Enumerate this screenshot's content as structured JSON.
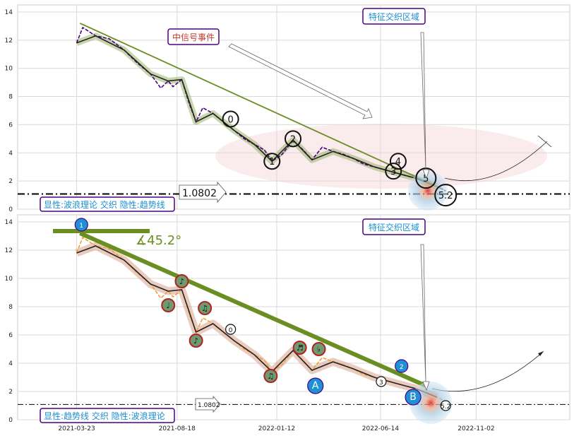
{
  "chart_data": [
    {
      "type": "line",
      "panel": "top",
      "title": "",
      "xlabel": "",
      "ylabel": "",
      "ylim": [
        0,
        14.5
      ],
      "yticks": [
        0,
        2,
        4,
        6,
        8,
        10,
        12,
        14
      ],
      "grid": true,
      "price_series": {
        "x": [
          "2021-03-23",
          "2021-04-01",
          "2021-04-20",
          "2021-05-10",
          "2021-06-01",
          "2021-06-20",
          "2021-07-10",
          "2021-07-25",
          "2021-08-05",
          "2021-08-12",
          "2021-08-25",
          "2021-09-05",
          "2021-09-15",
          "2021-09-25",
          "2021-10-10",
          "2021-10-25",
          "2021-11-10",
          "2021-11-25",
          "2021-12-10",
          "2021-12-25",
          "2022-01-05",
          "2022-01-20",
          "2022-02-05",
          "2022-02-20",
          "2022-03-05",
          "2022-03-20",
          "2022-04-05",
          "2022-04-20",
          "2022-05-05",
          "2022-05-20",
          "2022-06-05",
          "2022-06-20",
          "2022-07-05",
          "2022-07-20",
          "2022-08-05",
          "2022-08-20",
          "2022-09-05",
          "2022-09-18"
        ],
        "values": [
          11.8,
          12.9,
          12.3,
          12.1,
          11.3,
          10.4,
          9.6,
          8.6,
          9.1,
          8.7,
          9.2,
          7.5,
          6.2,
          7.2,
          6.8,
          6.2,
          5.6,
          5.0,
          4.6,
          4.2,
          3.4,
          3.9,
          4.9,
          4.2,
          3.5,
          4.4,
          4.1,
          3.9,
          3.6,
          3.2,
          3.0,
          2.8,
          2.6,
          2.4,
          2.2,
          2.0,
          1.6,
          1.3
        ]
      },
      "trendline": {
        "from": [
          "2021-03-28",
          13.2
        ],
        "to": [
          "2022-09-15",
          1.4
        ]
      },
      "wave_points": [
        {
          "label": "0",
          "x": "2021-11-05",
          "y": 6.4
        },
        {
          "label": "1",
          "x": "2022-01-05",
          "y": 3.4
        },
        {
          "label": "2",
          "x": "2022-02-05",
          "y": 5.0
        },
        {
          "label": "3",
          "x": "2022-07-03",
          "y": 2.7
        },
        {
          "label": "4",
          "x": "2022-07-10",
          "y": 3.4
        },
        {
          "label": "5",
          "x": "2022-08-20",
          "y": 2.2
        },
        {
          "label": "5.2",
          "x": "2022-09-18",
          "y": 1.0
        }
      ],
      "reference_line": {
        "value": 1.0802,
        "label": "1.0802"
      },
      "annotations": {
        "event": "中信号事件",
        "zone": "特征交织区域"
      },
      "legend": "显性:波浪理论 交织 隐性:趋势线"
    },
    {
      "type": "line",
      "panel": "bottom",
      "title": "",
      "xlabel": "",
      "ylabel": "",
      "ylim": [
        0,
        14.5
      ],
      "yticks": [
        0,
        2,
        4,
        6,
        8,
        10,
        12,
        14
      ],
      "xticks": [
        "2021-03-23",
        "2021-08-18",
        "2022-01-12",
        "2022-06-14",
        "2022-11-02"
      ],
      "grid": true,
      "price_series": {
        "x": [
          "2021-03-23",
          "2021-04-01",
          "2021-04-20",
          "2021-05-10",
          "2021-06-01",
          "2021-06-20",
          "2021-07-10",
          "2021-07-25",
          "2021-08-05",
          "2021-08-12",
          "2021-08-25",
          "2021-09-05",
          "2021-09-15",
          "2021-09-25",
          "2021-10-10",
          "2021-10-25",
          "2021-11-10",
          "2021-11-25",
          "2021-12-10",
          "2021-12-25",
          "2022-01-05",
          "2022-01-20",
          "2022-02-05",
          "2022-02-20",
          "2022-03-05",
          "2022-03-20",
          "2022-04-05",
          "2022-04-20",
          "2022-05-05",
          "2022-05-20",
          "2022-06-05",
          "2022-06-20",
          "2022-07-05",
          "2022-07-20",
          "2022-08-05",
          "2022-08-20",
          "2022-09-05",
          "2022-09-18"
        ],
        "values": [
          11.8,
          12.9,
          12.3,
          12.1,
          11.3,
          10.4,
          9.6,
          8.6,
          9.1,
          8.7,
          9.2,
          7.5,
          6.2,
          7.2,
          6.8,
          6.2,
          5.6,
          5.0,
          4.6,
          4.2,
          3.4,
          3.9,
          4.9,
          4.2,
          3.5,
          4.4,
          4.1,
          3.9,
          3.6,
          3.2,
          3.0,
          2.8,
          2.6,
          2.4,
          2.2,
          2.0,
          1.6,
          1.3
        ]
      },
      "trendline": {
        "from": [
          "2021-03-28",
          13.2
        ],
        "to": [
          "2022-08-20",
          2.4
        ]
      },
      "angle_label": "∡45.2°",
      "note_points": [
        {
          "label": "♩",
          "x": "2021-08-05",
          "y": 8.1
        },
        {
          "label": "♪",
          "x": "2021-08-25",
          "y": 9.8
        },
        {
          "label": "♪",
          "x": "2021-09-15",
          "y": 5.6
        },
        {
          "label": "♫",
          "x": "2021-09-28",
          "y": 7.9
        },
        {
          "label": "♫",
          "x": "2022-01-03",
          "y": 3.1
        },
        {
          "label": "♬",
          "x": "2022-02-15",
          "y": 5.1
        },
        {
          "label": "♭",
          "x": "2022-03-15",
          "y": 5.0
        }
      ],
      "wave_points": [
        {
          "label": "1",
          "x": "2021-03-30",
          "y": 13.8
        },
        {
          "label": "0",
          "x": "2021-11-05",
          "y": 6.4
        },
        {
          "label": "A",
          "x": "2022-03-10",
          "y": 2.4
        },
        {
          "label": "3",
          "x": "2022-06-15",
          "y": 2.7
        },
        {
          "label": "2",
          "x": "2022-07-15",
          "y": 3.8
        },
        {
          "label": "B",
          "x": "2022-08-01",
          "y": 1.6
        },
        {
          "label": "5.2",
          "x": "2022-09-18",
          "y": 1.0
        }
      ],
      "reference_line": {
        "value": 1.0802,
        "label": "1.0802"
      },
      "annotations": {
        "zone": "特征交织区域"
      },
      "legend": "显性:趋势线 交织 隐性:波浪理论"
    }
  ]
}
